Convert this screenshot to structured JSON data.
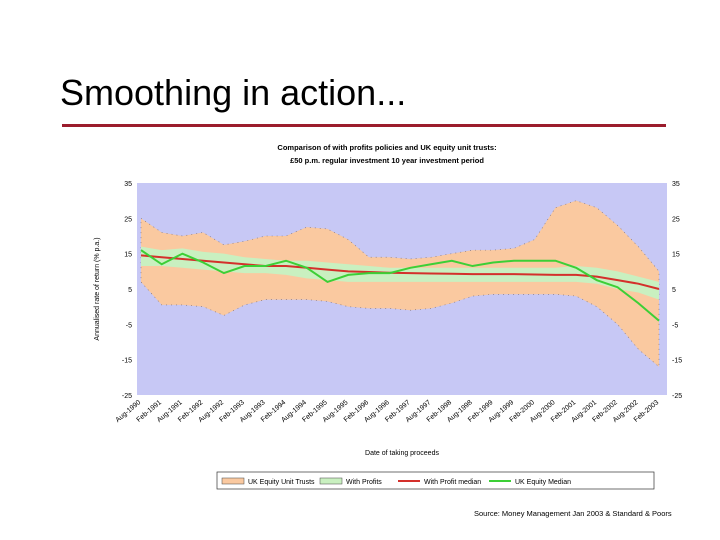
{
  "slide": {
    "title": "Smoothing in action...",
    "source": "Source: Money Management Jan 2003 & Standard & Poors"
  },
  "colors": {
    "title_rule": "#9b1c2c",
    "plot_background": "#c7c8f5",
    "uk_equity_band": "#fac9a0",
    "with_profits_band": "#c9f0c0",
    "with_profit_median": "#d4302b",
    "uk_equity_median": "#3ccf36"
  },
  "chart_data": {
    "type": "area",
    "title": "Comparison of with profits policies and UK equity unit trusts:",
    "subtitle": "£50 p.m. regular investment 10 year investment period",
    "xlabel": "Date of taking proceeds",
    "ylabel": "Annualised rate of return (% p.a.)",
    "ylim": [
      -25,
      35
    ],
    "yticks": [
      35,
      25,
      15,
      5,
      -5,
      -15,
      -25
    ],
    "ytick_labels": [
      "35",
      "25",
      "15",
      "5",
      "-5",
      "-15",
      "-25"
    ],
    "right_axis_labels": [
      "35",
      "25",
      "15",
      "5",
      "-5",
      "-15",
      "-25"
    ],
    "grid": false,
    "legend_position": "bottom",
    "x": [
      "Aug-1990",
      "Feb-1991",
      "Aug-1991",
      "Feb-1992",
      "Aug-1992",
      "Feb-1993",
      "Aug-1993",
      "Feb-1994",
      "Aug-1994",
      "Feb-1995",
      "Aug-1995",
      "Feb-1996",
      "Aug-1996",
      "Feb-1997",
      "Aug-1997",
      "Feb-1998",
      "Aug-1998",
      "Feb-1999",
      "Aug-1999",
      "Feb-2000",
      "Aug-2000",
      "Feb-2001",
      "Aug-2001",
      "Feb-2002",
      "Aug-2002",
      "Feb-2003"
    ],
    "series": [
      {
        "name": "UK Equity Unit Trusts",
        "kind": "band",
        "upper": [
          25,
          21,
          20,
          21,
          17.5,
          18.5,
          20,
          20,
          22.5,
          22,
          19,
          14,
          14,
          13.5,
          14,
          15,
          16,
          16,
          16.5,
          19,
          28,
          30,
          28,
          23,
          17,
          10
        ],
        "lower": [
          7,
          0.5,
          0.5,
          0,
          -2.5,
          0.5,
          2,
          2,
          2,
          1.5,
          0,
          -0.5,
          -0.5,
          -1,
          -0.5,
          1,
          3,
          3.5,
          3.5,
          3.5,
          3.5,
          3,
          0,
          -5,
          -12,
          -17
        ]
      },
      {
        "name": "With Profits",
        "kind": "band",
        "upper": [
          17,
          16,
          16.5,
          15.5,
          15,
          14,
          13.5,
          13,
          13,
          12.5,
          12,
          11.5,
          11,
          11,
          11,
          11,
          11,
          11,
          11,
          11,
          11,
          11.5,
          11,
          10,
          8.5,
          7
        ],
        "lower": [
          11.5,
          11.5,
          11,
          10.5,
          10,
          9.5,
          9.5,
          9,
          8,
          7.5,
          7,
          7,
          7,
          7,
          7,
          7,
          7,
          7,
          7,
          7,
          7,
          7,
          6.5,
          5,
          4,
          2
        ]
      },
      {
        "name": "With Profit median",
        "kind": "line",
        "values": [
          14.5,
          14,
          13.5,
          13,
          12.5,
          12,
          11.5,
          11.5,
          11,
          10.5,
          10,
          9.8,
          9.6,
          9.5,
          9.4,
          9.3,
          9.2,
          9.2,
          9.2,
          9.1,
          9,
          9,
          8.5,
          7.5,
          6.5,
          5
        ]
      },
      {
        "name": "UK Equity Median",
        "kind": "line",
        "values": [
          16,
          12,
          15,
          12.5,
          9.5,
          11.5,
          11.5,
          13,
          11,
          7,
          9,
          9.5,
          9.5,
          11,
          12,
          13,
          11.5,
          12.5,
          13,
          13,
          13,
          11,
          7.5,
          5.5,
          1,
          -4
        ]
      }
    ]
  }
}
